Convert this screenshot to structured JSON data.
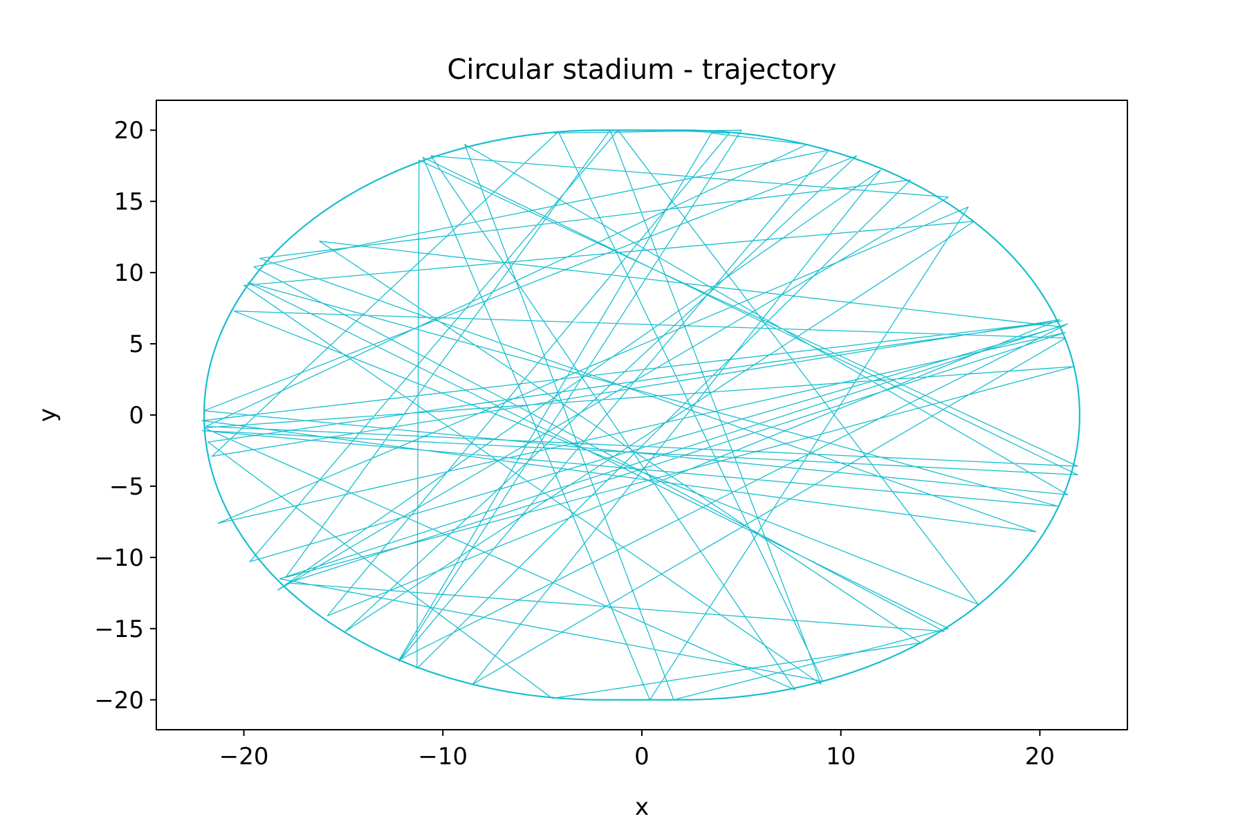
{
  "chart_data": {
    "type": "line",
    "title": "Circular stadium - trajectory",
    "xlabel": "x",
    "ylabel": "y",
    "xlim": [
      -24.4,
      24.4
    ],
    "ylim": [
      -22.1,
      22.1
    ],
    "xticks": [
      -20,
      -10,
      0,
      10,
      20
    ],
    "yticks": [
      -20,
      -15,
      -10,
      -5,
      0,
      5,
      10,
      15,
      20
    ],
    "xtick_labels": [
      "−20",
      "−10",
      "0",
      "10",
      "20"
    ],
    "ytick_labels": [
      "−20",
      "−15",
      "−10",
      "−5",
      "0",
      "5",
      "10",
      "15",
      "20"
    ],
    "grid": false,
    "line_color": "#17becf",
    "boundary": {
      "shape": "stadium",
      "flat_top_bottom": {
        "y": [
          20,
          -20
        ],
        "x": [
          -2,
          2
        ]
      },
      "semicircle_radius": 20
    },
    "series": [
      {
        "x": [
          -2.0,
          1.1,
          4.4,
          -15.8,
          21.0,
          -21.6,
          -4.2,
          9.1,
          -18.2,
          21.4,
          -12.2,
          3.5,
          8.3,
          -21.9,
          21.9,
          -11.2,
          -11.3,
          13.5,
          -19.2,
          19.8,
          -22.1,
          21.1,
          -21.8,
          -4.5,
          14.0,
          -16.2,
          21.0,
          -19.7,
          -1.2,
          16.9,
          -20.5,
          21.3,
          -8.5,
          12.0,
          -18.3,
          15.4,
          -10.6,
          7.7,
          -22.0,
          21.7,
          -17.9,
          -1.6,
          9.0,
          -20.0,
          16.7,
          -14.9,
          10.8,
          -22.0,
          21.4,
          -8.9,
          1.6,
          15.4,
          -19.8,
          20.9,
          -22.1,
          21.9,
          -11.0,
          0.4,
          16.4,
          -21.3,
          21.3,
          -17.8,
          15.2,
          -19.5,
          9.4,
          -12.2,
          5.0,
          -4.4
        ],
        "y": [
          20.0,
          20.0,
          19.8,
          -14.1,
          6.7,
          -2.9,
          19.9,
          -18.7,
          -11.5,
          6.4,
          -17.2,
          19.8,
          19.0,
          -0.8,
          -3.6,
          17.9,
          -17.8,
          16.5,
          11.0,
          -8.2,
          -0.4,
          6.6,
          -1.9,
          -19.9,
          -16.0,
          12.2,
          6.2,
          -10.3,
          20.0,
          -13.3,
          7.3,
          5.4,
          -18.9,
          17.2,
          -12.3,
          15.3,
          18.2,
          -19.3,
          -0.9,
          3.4,
          -11.4,
          20.0,
          -18.9,
          9.1,
          13.6,
          -15.2,
          18.2,
          0.3,
          -5.6,
          19.0,
          -20.0,
          -15.0,
          9.3,
          -6.4,
          -1.1,
          -4.2,
          18.1,
          -20.0,
          14.6,
          -7.6,
          5.8,
          -11.8,
          -15.2,
          10.4,
          18.6,
          -17.3,
          20.0,
          19.8
        ]
      }
    ]
  }
}
